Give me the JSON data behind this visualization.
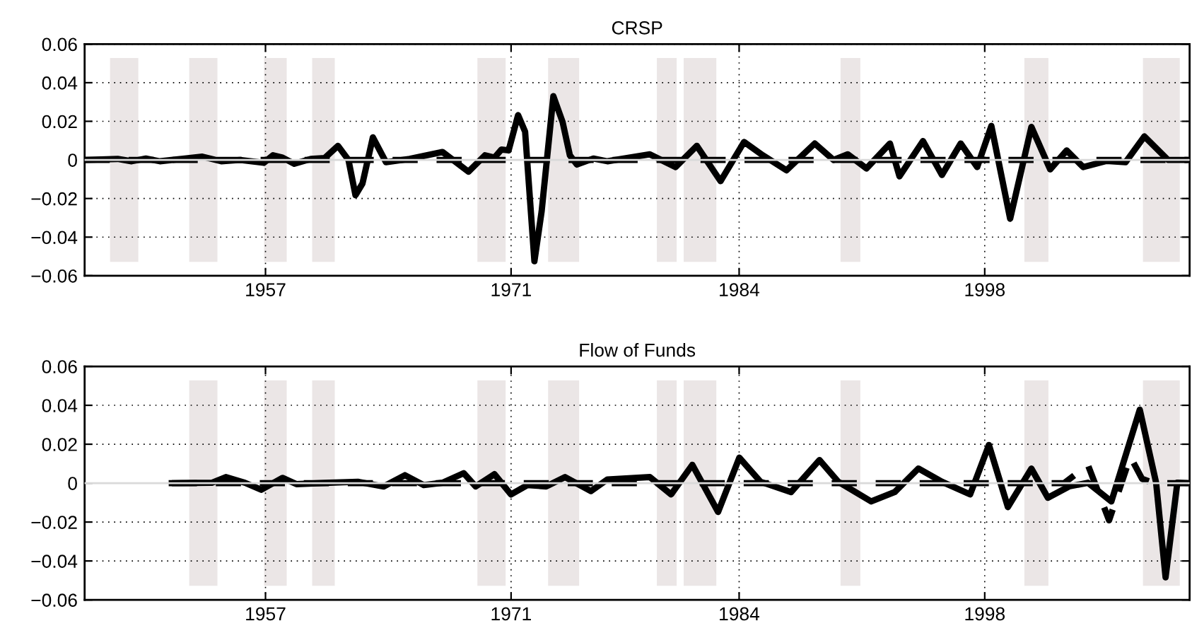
{
  "chart_data": [
    {
      "type": "line",
      "title": "CRSP",
      "xlim": [
        1946.69,
        2009.68
      ],
      "xticks": [
        1957,
        1971,
        1984,
        1998
      ],
      "ylim": [
        -0.06,
        0.06
      ],
      "yticks": [
        -0.06,
        -0.04,
        -0.02,
        0,
        0.02,
        0.04,
        0.06
      ],
      "grid": true,
      "ref_lines": [
        {
          "axis": "y",
          "value": 0,
          "color": "#d9d9d9"
        }
      ],
      "bands": [
        {
          "axis": "x",
          "from": 1948.14,
          "to": 1949.75,
          "color": "#ebe6e6"
        },
        {
          "axis": "x",
          "from": 1952.65,
          "to": 1954.26,
          "color": "#ebe6e6"
        },
        {
          "axis": "x",
          "from": 1956.92,
          "to": 1958.21,
          "color": "#ebe6e6"
        },
        {
          "axis": "x",
          "from": 1959.66,
          "to": 1960.95,
          "color": "#ebe6e6"
        },
        {
          "axis": "x",
          "from": 1969.08,
          "to": 1970.69,
          "color": "#ebe6e6"
        },
        {
          "axis": "x",
          "from": 1973.11,
          "to": 1974.88,
          "color": "#ebe6e6"
        },
        {
          "axis": "x",
          "from": 1979.31,
          "to": 1980.44,
          "color": "#ebe6e6"
        },
        {
          "axis": "x",
          "from": 1980.84,
          "to": 1982.7,
          "color": "#ebe6e6"
        },
        {
          "axis": "x",
          "from": 1989.78,
          "to": 1990.91,
          "color": "#ebe6e6"
        },
        {
          "axis": "x",
          "from": 2000.26,
          "to": 2001.63,
          "color": "#ebe6e6"
        },
        {
          "axis": "x",
          "from": 2007.02,
          "to": 2009.12,
          "color": "#ebe6e6"
        }
      ],
      "series": [
        {
          "color": "#000000",
          "line_style": "dashed",
          "x": [
            1946.69,
            1960,
            1975,
            1990,
            2009.6
          ],
          "values": [
            0,
            0,
            0,
            0,
            0
          ]
        },
        {
          "color": "#000000",
          "line_style": "solid",
          "x": [
            1946.69,
            1948.57,
            1949.37,
            1950.18,
            1950.98,
            1953.4,
            1954.48,
            1955.55,
            1956.9,
            1957.43,
            1957.97,
            1958.64,
            1959.58,
            1960.38,
            1961.13,
            1961.73,
            1962.13,
            1962.53,
            1963.12,
            1963.87,
            1965.22,
            1967.09,
            1968.57,
            1969.51,
            1970.05,
            1970.45,
            1970.86,
            1971.4,
            1971.8,
            1972.33,
            1972.74,
            1973.41,
            1973.94,
            1974.35,
            1974.75,
            1975.69,
            1976.49,
            1978.91,
            1980.38,
            1981.59,
            1982.94,
            1984.28,
            1985.35,
            1986.7,
            1988.31,
            1989.38,
            1990.19,
            1991.26,
            1992.6,
            1993.14,
            1994.48,
            1995.56,
            1996.63,
            1997.57,
            1998.38,
            1999.45,
            2000.66,
            2001.73,
            2002.67,
            2003.61,
            2004.95,
            2006.03,
            2007.1,
            2008.45,
            2009.6
          ],
          "values": [
            0,
            0.0005,
            -0.0007,
            0.0007,
            -0.0007,
            0.0017,
            -0.0007,
            0,
            -0.0015,
            0.0024,
            0.0012,
            -0.002,
            0.0005,
            0.001,
            0.0073,
            0,
            -0.0183,
            -0.0122,
            0.0117,
            -0.0012,
            0.0005,
            0.0041,
            -0.0061,
            0.0024,
            0.0012,
            0.0054,
            0.0049,
            0.0232,
            0.0146,
            -0.0525,
            -0.0268,
            0.033,
            0.0195,
            0.0024,
            -0.0024,
            0.0007,
            -0.0007,
            0.0029,
            -0.0037,
            0.0073,
            -0.011,
            0.0093,
            0.0024,
            -0.0054,
            0.0085,
            0,
            0.0029,
            -0.0044,
            0.0085,
            -0.0085,
            0.0098,
            -0.0078,
            0.0085,
            -0.0037,
            0.0176,
            -0.0305,
            0.0171,
            -0.0049,
            0.0049,
            -0.0037,
            -0.0005,
            -0.0012,
            0.0122,
            0,
            0
          ]
        }
      ]
    },
    {
      "type": "line",
      "title": "Flow of Funds",
      "xlim": [
        1946.69,
        2009.68
      ],
      "xticks": [
        1957,
        1971,
        1984,
        1998
      ],
      "ylim": [
        -0.06,
        0.06
      ],
      "yticks": [
        -0.06,
        -0.04,
        -0.02,
        0,
        0.02,
        0.04,
        0.06
      ],
      "grid": true,
      "ref_lines": [
        {
          "axis": "y",
          "value": 0,
          "color": "#d9d9d9"
        }
      ],
      "bands": [
        {
          "axis": "x",
          "from": 1952.65,
          "to": 1954.26,
          "color": "#ebe6e6"
        },
        {
          "axis": "x",
          "from": 1956.92,
          "to": 1958.21,
          "color": "#ebe6e6"
        },
        {
          "axis": "x",
          "from": 1959.66,
          "to": 1960.95,
          "color": "#ebe6e6"
        },
        {
          "axis": "x",
          "from": 1969.08,
          "to": 1970.69,
          "color": "#ebe6e6"
        },
        {
          "axis": "x",
          "from": 1973.11,
          "to": 1974.88,
          "color": "#ebe6e6"
        },
        {
          "axis": "x",
          "from": 1979.31,
          "to": 1980.44,
          "color": "#ebe6e6"
        },
        {
          "axis": "x",
          "from": 1980.84,
          "to": 1982.7,
          "color": "#ebe6e6"
        },
        {
          "axis": "x",
          "from": 1989.78,
          "to": 1990.91,
          "color": "#ebe6e6"
        },
        {
          "axis": "x",
          "from": 2000.26,
          "to": 2001.63,
          "color": "#ebe6e6"
        },
        {
          "axis": "x",
          "from": 2007.02,
          "to": 2009.12,
          "color": "#ebe6e6"
        }
      ],
      "series": [
        {
          "color": "#000000",
          "line_style": "dashed",
          "x": [
            1951.66,
            1970.0,
            2002.53,
            2003.88,
            2005.09,
            2006.3,
            2006.97,
            2007.64,
            2009.6
          ],
          "values": [
            0,
            0,
            0,
            0.0094,
            -0.0191,
            0.0136,
            0.0022,
            0,
            0
          ]
        },
        {
          "color": "#000000",
          "line_style": "solid",
          "x": [
            1951.66,
            1953.94,
            1954.74,
            1955.82,
            1956.76,
            1957.97,
            1958.77,
            1960.65,
            1962.26,
            1963.74,
            1964.95,
            1966.02,
            1967.09,
            1968.3,
            1968.98,
            1970.05,
            1970.99,
            1971.93,
            1973.0,
            1974.08,
            1975.55,
            1976.49,
            1978.91,
            1980.12,
            1981.33,
            1982.8,
            1984.01,
            1985.22,
            1986.96,
            1988.58,
            1989.65,
            1991.53,
            1992.87,
            1994.22,
            1995.56,
            1997.17,
            1998.24,
            1999.32,
            2000.66,
            2001.6,
            2002.81,
            2003.88,
            2005.22,
            2006.84,
            2007.77,
            2008.31,
            2008.98,
            2009.6
          ],
          "values": [
            0,
            0.0002,
            0.0031,
            0.0002,
            -0.0034,
            0.0027,
            -0.0005,
            0.0002,
            0.0007,
            -0.0017,
            0.0041,
            -0.001,
            0.0002,
            0.0051,
            -0.0017,
            0.0046,
            -0.0058,
            -0.001,
            -0.0017,
            0.0031,
            -0.0041,
            0.0019,
            0.0031,
            -0.0058,
            0.0094,
            -0.0148,
            0.0131,
            0.0007,
            -0.0046,
            0.0119,
            0.0007,
            -0.0094,
            -0.0046,
            0.0075,
            0.0007,
            -0.0058,
            0.0196,
            -0.0123,
            0.0075,
            -0.0075,
            -0.0017,
            0.0002,
            -0.0094,
            0.0378,
            0.0002,
            -0.0484,
            0.0002,
            0
          ]
        }
      ]
    }
  ]
}
